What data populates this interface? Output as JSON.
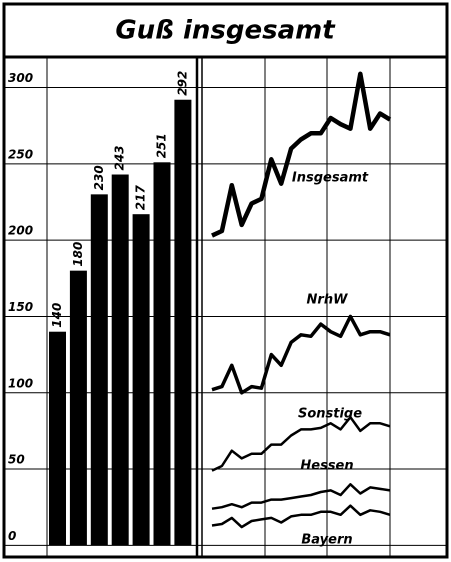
{
  "title": "Guß insgesamt",
  "chart_data": [
    {
      "type": "bar",
      "categories": [
        null,
        null,
        null,
        null,
        null,
        null,
        null
      ],
      "values": [
        140,
        180,
        230,
        243,
        217,
        251,
        292
      ],
      "color": "#000000",
      "ylim": [
        -5,
        320
      ],
      "yticks": [
        0,
        50,
        100,
        150,
        200,
        250,
        300
      ],
      "grid": true
    },
    {
      "type": "line",
      "categories": [
        null,
        null,
        null,
        null,
        null,
        null,
        null,
        null,
        null,
        null,
        null,
        null,
        null,
        null,
        null,
        null,
        null,
        null,
        null
      ],
      "ylim": [
        -5,
        320
      ],
      "series": [
        {
          "name": "Insgesamt",
          "color": "#000000",
          "values": [
            203,
            206,
            236,
            210,
            224,
            227,
            253,
            237,
            260,
            266,
            270,
            270,
            280,
            276,
            273,
            309,
            273,
            283,
            279
          ]
        },
        {
          "name": "NrhW",
          "color": "#000000",
          "values": [
            102,
            104,
            118,
            100,
            104,
            103,
            125,
            118,
            133,
            138,
            137,
            145,
            140,
            137,
            150,
            138,
            140,
            140,
            138
          ]
        },
        {
          "name": "Sonstige",
          "color": "#000000",
          "values": [
            49,
            52,
            62,
            57,
            60,
            60,
            66,
            66,
            72,
            76,
            76,
            77,
            80,
            76,
            84,
            75,
            80,
            80,
            78
          ]
        },
        {
          "name": "Hessen",
          "color": "#000000",
          "values": [
            24,
            25,
            27,
            25,
            28,
            28,
            30,
            30,
            31,
            32,
            33,
            35,
            36,
            33,
            40,
            34,
            38,
            37,
            36
          ]
        },
        {
          "name": "Bayern",
          "color": "#000000",
          "values": [
            13,
            14,
            18,
            12,
            16,
            17,
            18,
            15,
            19,
            20,
            20,
            22,
            22,
            20,
            26,
            20,
            23,
            22,
            20
          ]
        }
      ]
    }
  ]
}
